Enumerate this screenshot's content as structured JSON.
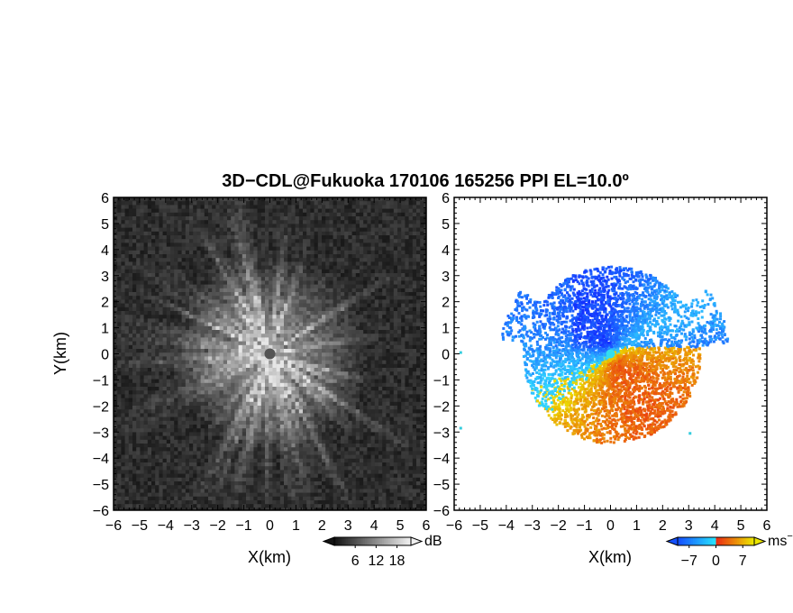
{
  "chart_data": {
    "title": "3D−CDL@Fukuoka 170106 165256 PPI EL=10.0º",
    "panels": [
      {
        "type": "heatmap",
        "field": "reflectivity",
        "xlabel": "X(km)",
        "ylabel": "Y(km)",
        "xlim": [
          -6,
          6
        ],
        "ylim": [
          -6,
          6
        ],
        "xticks": [
          "−6",
          "−5",
          "−4",
          "−3",
          "−2",
          "−1",
          "0",
          "1",
          "2",
          "3",
          "4",
          "5",
          "6"
        ],
        "yticks": [
          "6",
          "5",
          "4",
          "3",
          "2",
          "1",
          "0",
          "−1",
          "−2",
          "−3",
          "−4",
          "−5",
          "−6"
        ],
        "colormap": "grayscale",
        "colorbar": {
          "ticks": [
            "6",
            "12",
            "18"
          ],
          "range": [
            0,
            22
          ],
          "unit": "dB"
        }
      },
      {
        "type": "heatmap",
        "field": "doppler velocity",
        "xlabel": "X(km)",
        "ylabel": "",
        "xlim": [
          -6,
          6
        ],
        "ylim": [
          -6,
          6
        ],
        "xticks": [
          "−6",
          "−5",
          "−4",
          "−3",
          "−2",
          "−1",
          "0",
          "1",
          "2",
          "3",
          "4",
          "5",
          "6"
        ],
        "yticks": [
          "6",
          "5",
          "4",
          "3",
          "2",
          "1",
          "0",
          "−1",
          "−2",
          "−3",
          "−4",
          "−5",
          "−6"
        ],
        "colormap": "blue-cyan-red-yellow",
        "colorbar": {
          "ticks": [
            "−7",
            "0",
            "7"
          ],
          "range": [
            -10,
            10
          ],
          "unit": "ms",
          "unit_exp": "−1"
        }
      }
    ]
  }
}
